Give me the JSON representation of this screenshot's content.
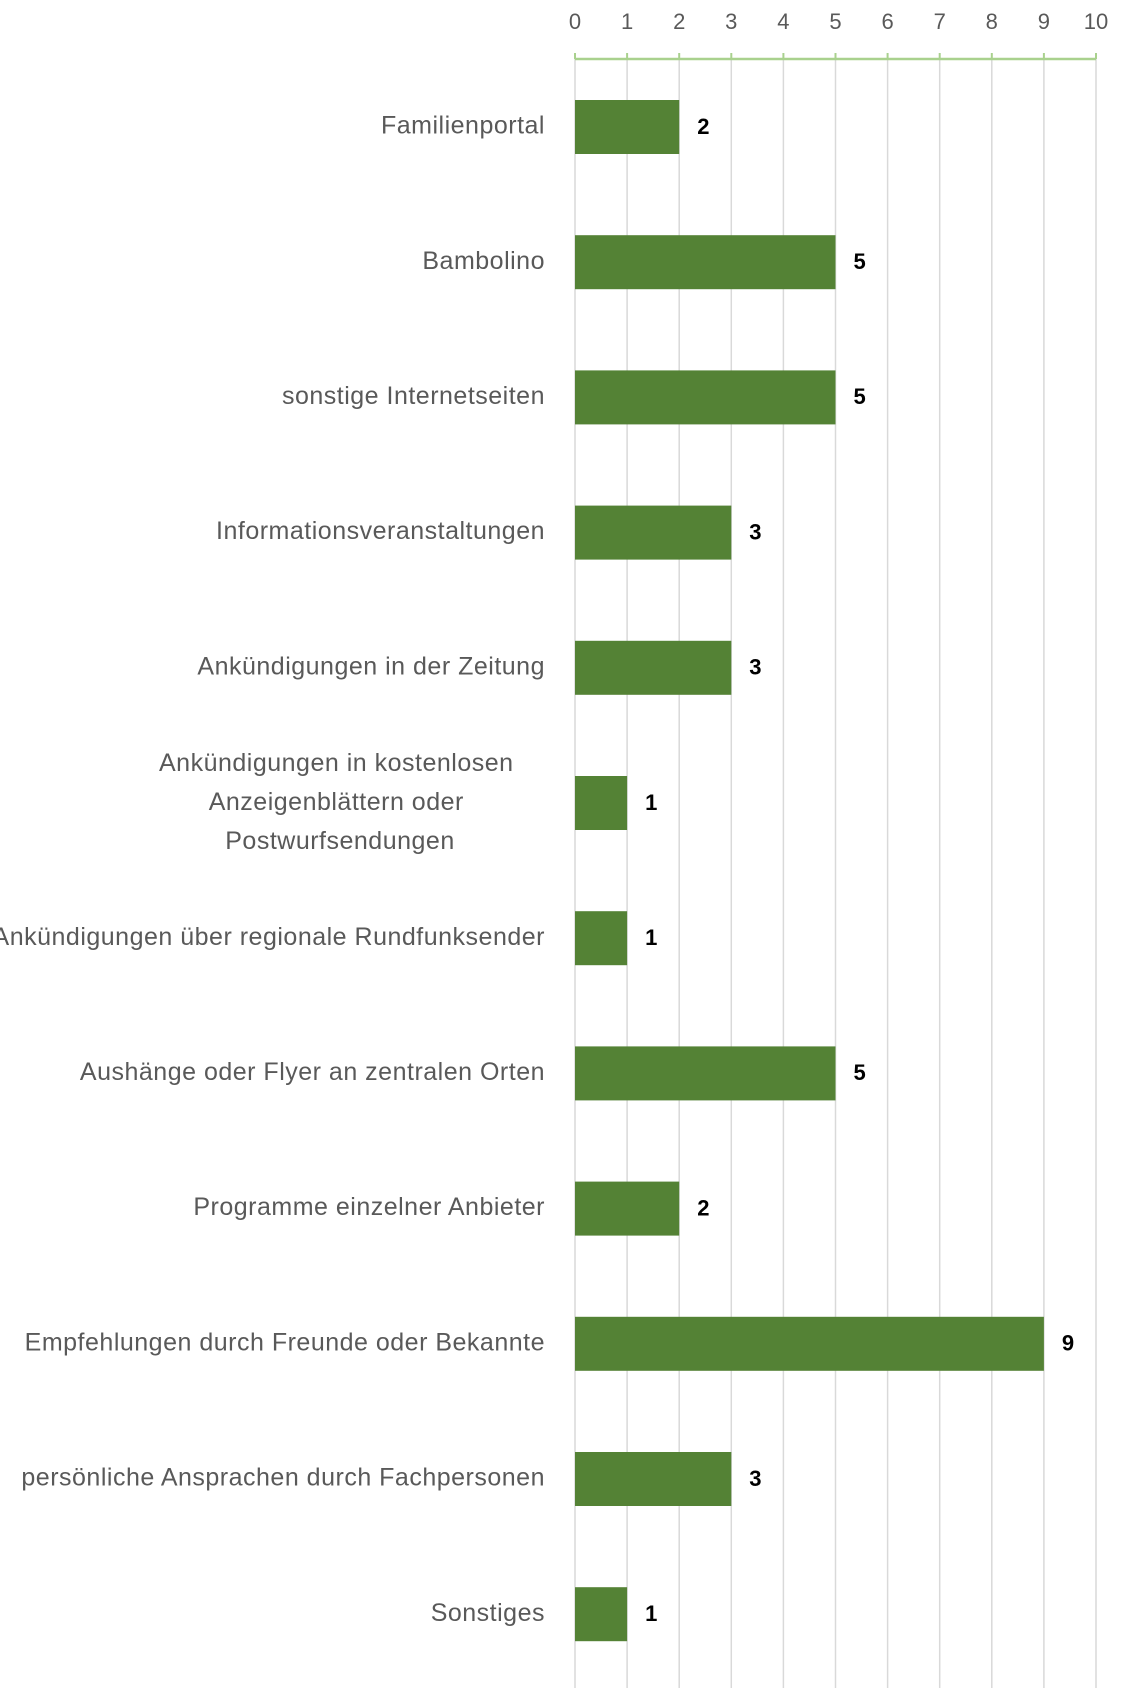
{
  "chart_data": {
    "type": "bar",
    "orientation": "horizontal",
    "categories": [
      "Familienportal",
      "Bambolino",
      "sonstige Internetseiten",
      "Informationsveranstaltungen",
      "Ankündigungen in der Zeitung",
      "Ankündigungen in kostenlosen Anzeigenblättern oder Postwurfsendungen",
      "Ankündigungen über regionale Rundfunksender",
      "Aushänge oder Flyer an zentralen Orten",
      "Programme einzelner Anbieter",
      "Empfehlungen durch Freunde oder Bekannte",
      "persönliche Ansprachen durch Fachpersonen",
      "Sonstiges"
    ],
    "values": [
      2,
      5,
      5,
      3,
      3,
      1,
      1,
      5,
      2,
      9,
      3,
      1
    ],
    "color": "#548235",
    "xlim": [
      0,
      10
    ],
    "xticks": [
      0,
      1,
      2,
      3,
      4,
      5,
      6,
      7,
      8,
      9,
      10
    ],
    "grid": true
  }
}
